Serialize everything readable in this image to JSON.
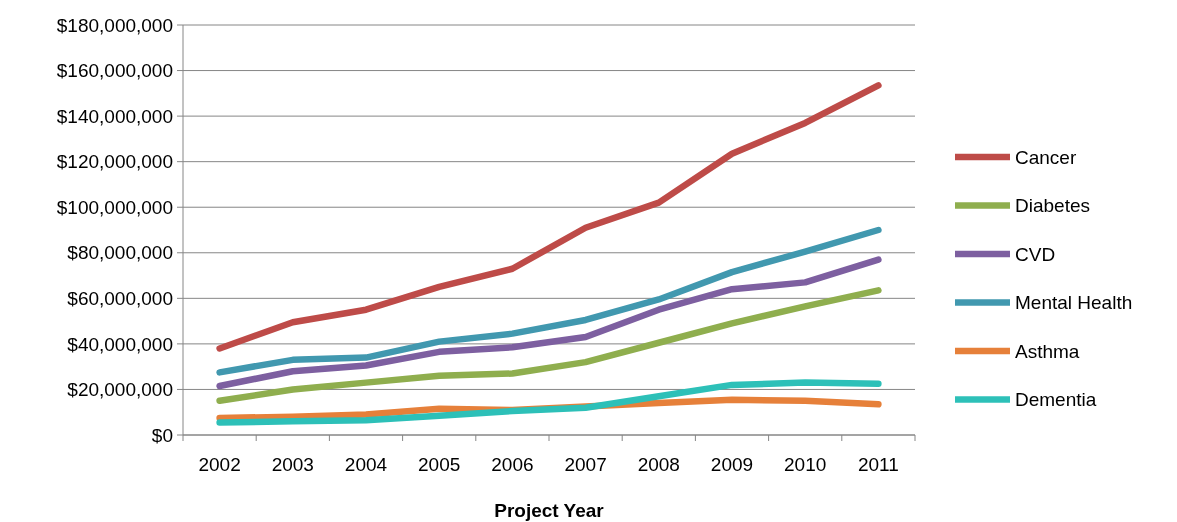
{
  "chart_data": {
    "type": "line",
    "xlabel": "Project Year",
    "categories": [
      "2002",
      "2003",
      "2004",
      "2005",
      "2006",
      "2007",
      "2008",
      "2009",
      "2010",
      "2011"
    ],
    "ylim": [
      0,
      180000000
    ],
    "yticks": [
      {
        "value": 0,
        "label": "$0"
      },
      {
        "value": 20000000,
        "label": "$20,000,000"
      },
      {
        "value": 40000000,
        "label": "$40,000,000"
      },
      {
        "value": 60000000,
        "label": "$60,000,000"
      },
      {
        "value": 80000000,
        "label": "$80,000,000"
      },
      {
        "value": 100000000,
        "label": "$100,000,000"
      },
      {
        "value": 120000000,
        "label": "$120,000,000"
      },
      {
        "value": 140000000,
        "label": "$140,000,000"
      },
      {
        "value": 160000000,
        "label": "$160,000,000"
      },
      {
        "value": 180000000,
        "label": "$180,000,000"
      }
    ],
    "grid": "y",
    "legend": "right",
    "marker": "none",
    "line_style": "solid",
    "series": [
      {
        "name": "Cancer",
        "color": "#be4b48",
        "values": [
          38000000,
          49500000,
          55000000,
          65000000,
          73000000,
          91000000,
          102000000,
          123500000,
          137000000,
          153500000
        ]
      },
      {
        "name": "Diabetes",
        "color": "#8fae4e",
        "values": [
          15000000,
          20000000,
          23000000,
          26000000,
          27000000,
          32000000,
          40500000,
          49000000,
          56500000,
          63500000
        ]
      },
      {
        "name": "CVD",
        "color": "#7d5fa0",
        "values": [
          21500000,
          28000000,
          30500000,
          36500000,
          38500000,
          43000000,
          55000000,
          64000000,
          67000000,
          77000000
        ]
      },
      {
        "name": "Mental Health",
        "color": "#4198af",
        "values": [
          27500000,
          33000000,
          34000000,
          41000000,
          44500000,
          50500000,
          59500000,
          71500000,
          80500000,
          90000000
        ]
      },
      {
        "name": "Asthma",
        "color": "#e6803a",
        "values": [
          7500000,
          8000000,
          9000000,
          11500000,
          11000000,
          12500000,
          14000000,
          15500000,
          15000000,
          13500000
        ]
      },
      {
        "name": "Dementia",
        "color": "#2dc0b8",
        "values": [
          5500000,
          6000000,
          6500000,
          8500000,
          10500000,
          12000000,
          17000000,
          22000000,
          23000000,
          22500000
        ]
      }
    ]
  }
}
